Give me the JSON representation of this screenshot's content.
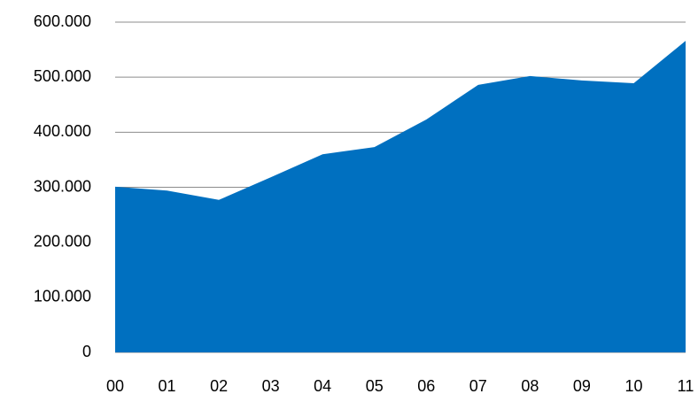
{
  "chart_data": {
    "type": "area",
    "categories": [
      "00",
      "01",
      "02",
      "03",
      "04",
      "05",
      "06",
      "07",
      "08",
      "09",
      "10",
      "11"
    ],
    "values": [
      301000,
      294000,
      277000,
      318000,
      360000,
      373000,
      423000,
      486000,
      502000,
      494000,
      489000,
      566000
    ],
    "color": "#0070c0",
    "ylim": [
      0,
      600000
    ],
    "yticks": [
      0,
      {
        "value": 100000,
        "label": "100.000"
      },
      {
        "value": 200000,
        "label": "200.000"
      },
      {
        "value": 300000,
        "label": "300.000"
      },
      {
        "value": 400000,
        "label": "400.000"
      },
      {
        "value": 500000,
        "label": "500.000"
      },
      {
        "value": 600000,
        "label": "600.000"
      }
    ],
    "grid": true
  }
}
